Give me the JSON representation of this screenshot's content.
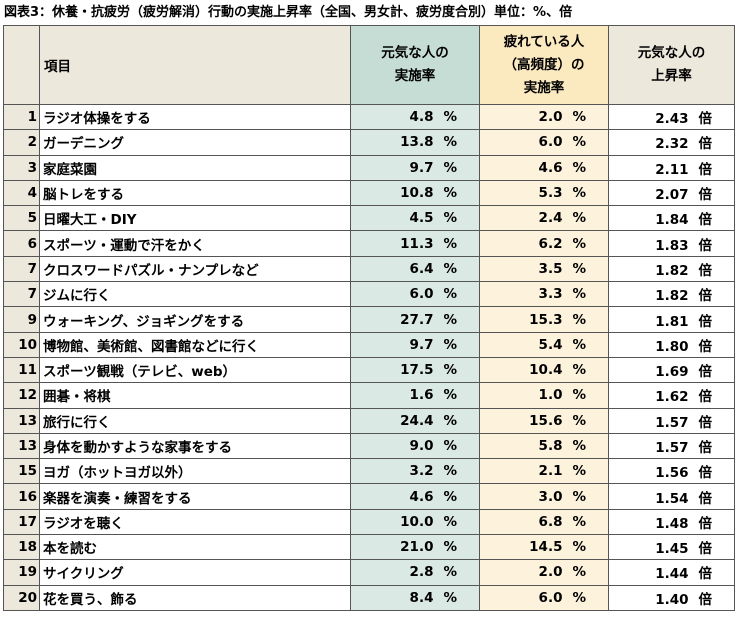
{
  "title": "図表3：休養・抗疲労（疲労解消）行動の実施上昇率（全国、男女計、疲労度合別）単位：%、倍",
  "headers": {
    "item": "項目",
    "genki_line1": "元気な人の",
    "genki_line2": "実施率",
    "tired_line1": "疲れている人",
    "tired_line2": "（高頻度）の",
    "tired_line3": "実施率",
    "ratio_line1": "元気な人の",
    "ratio_line2": "上昇率"
  },
  "rows": [
    {
      "rank": "1",
      "item": "ラジオ体操をする",
      "genki": "4.8",
      "tired": "2.0",
      "ratio": "2.43"
    },
    {
      "rank": "2",
      "item": "ガーデニング",
      "genki": "13.8",
      "tired": "6.0",
      "ratio": "2.32"
    },
    {
      "rank": "3",
      "item": "家庭菜園",
      "genki": "9.7",
      "tired": "4.6",
      "ratio": "2.11"
    },
    {
      "rank": "4",
      "item": "脳トレをする",
      "genki": "10.8",
      "tired": "5.3",
      "ratio": "2.07"
    },
    {
      "rank": "5",
      "item": "日曜大工・DIY",
      "genki": "4.5",
      "tired": "2.4",
      "ratio": "1.84"
    },
    {
      "rank": "6",
      "item": "スポーツ・運動で汗をかく",
      "genki": "11.3",
      "tired": "6.2",
      "ratio": "1.83"
    },
    {
      "rank": "7",
      "item": "クロスワードパズル・ナンプレなど",
      "genki": "6.4",
      "tired": "3.5",
      "ratio": "1.82"
    },
    {
      "rank": "7",
      "item": "ジムに行く",
      "genki": "6.0",
      "tired": "3.3",
      "ratio": "1.82"
    },
    {
      "rank": "9",
      "item": "ウォーキング、ジョギングをする",
      "genki": "27.7",
      "tired": "15.3",
      "ratio": "1.81"
    },
    {
      "rank": "10",
      "item": "博物館、美術館、図書館などに行く",
      "genki": "9.7",
      "tired": "5.4",
      "ratio": "1.80"
    },
    {
      "rank": "11",
      "item": "スポーツ観戦（テレビ、web）",
      "genki": "17.5",
      "tired": "10.4",
      "ratio": "1.69"
    },
    {
      "rank": "12",
      "item": "囲碁・将棋",
      "genki": "1.6",
      "tired": "1.0",
      "ratio": "1.62"
    },
    {
      "rank": "13",
      "item": "旅行に行く",
      "genki": "24.4",
      "tired": "15.6",
      "ratio": "1.57"
    },
    {
      "rank": "13",
      "item": "身体を動かすような家事をする",
      "genki": "9.0",
      "tired": "5.8",
      "ratio": "1.57"
    },
    {
      "rank": "15",
      "item": "ヨガ（ホットヨガ以外）",
      "genki": "3.2",
      "tired": "2.1",
      "ratio": "1.56"
    },
    {
      "rank": "16",
      "item": "楽器を演奏・練習をする",
      "genki": "4.6",
      "tired": "3.0",
      "ratio": "1.54"
    },
    {
      "rank": "17",
      "item": "ラジオを聴く",
      "genki": "10.0",
      "tired": "6.8",
      "ratio": "1.48"
    },
    {
      "rank": "18",
      "item": "本を読む",
      "genki": "21.0",
      "tired": "14.5",
      "ratio": "1.45"
    },
    {
      "rank": "19",
      "item": "サイクリング",
      "genki": "2.8",
      "tired": "2.0",
      "ratio": "1.44"
    },
    {
      "rank": "20",
      "item": "花を買う、飾る",
      "genki": "8.4",
      "tired": "6.0",
      "ratio": "1.40"
    }
  ],
  "units": {
    "percent": "%",
    "times": "倍"
  }
}
